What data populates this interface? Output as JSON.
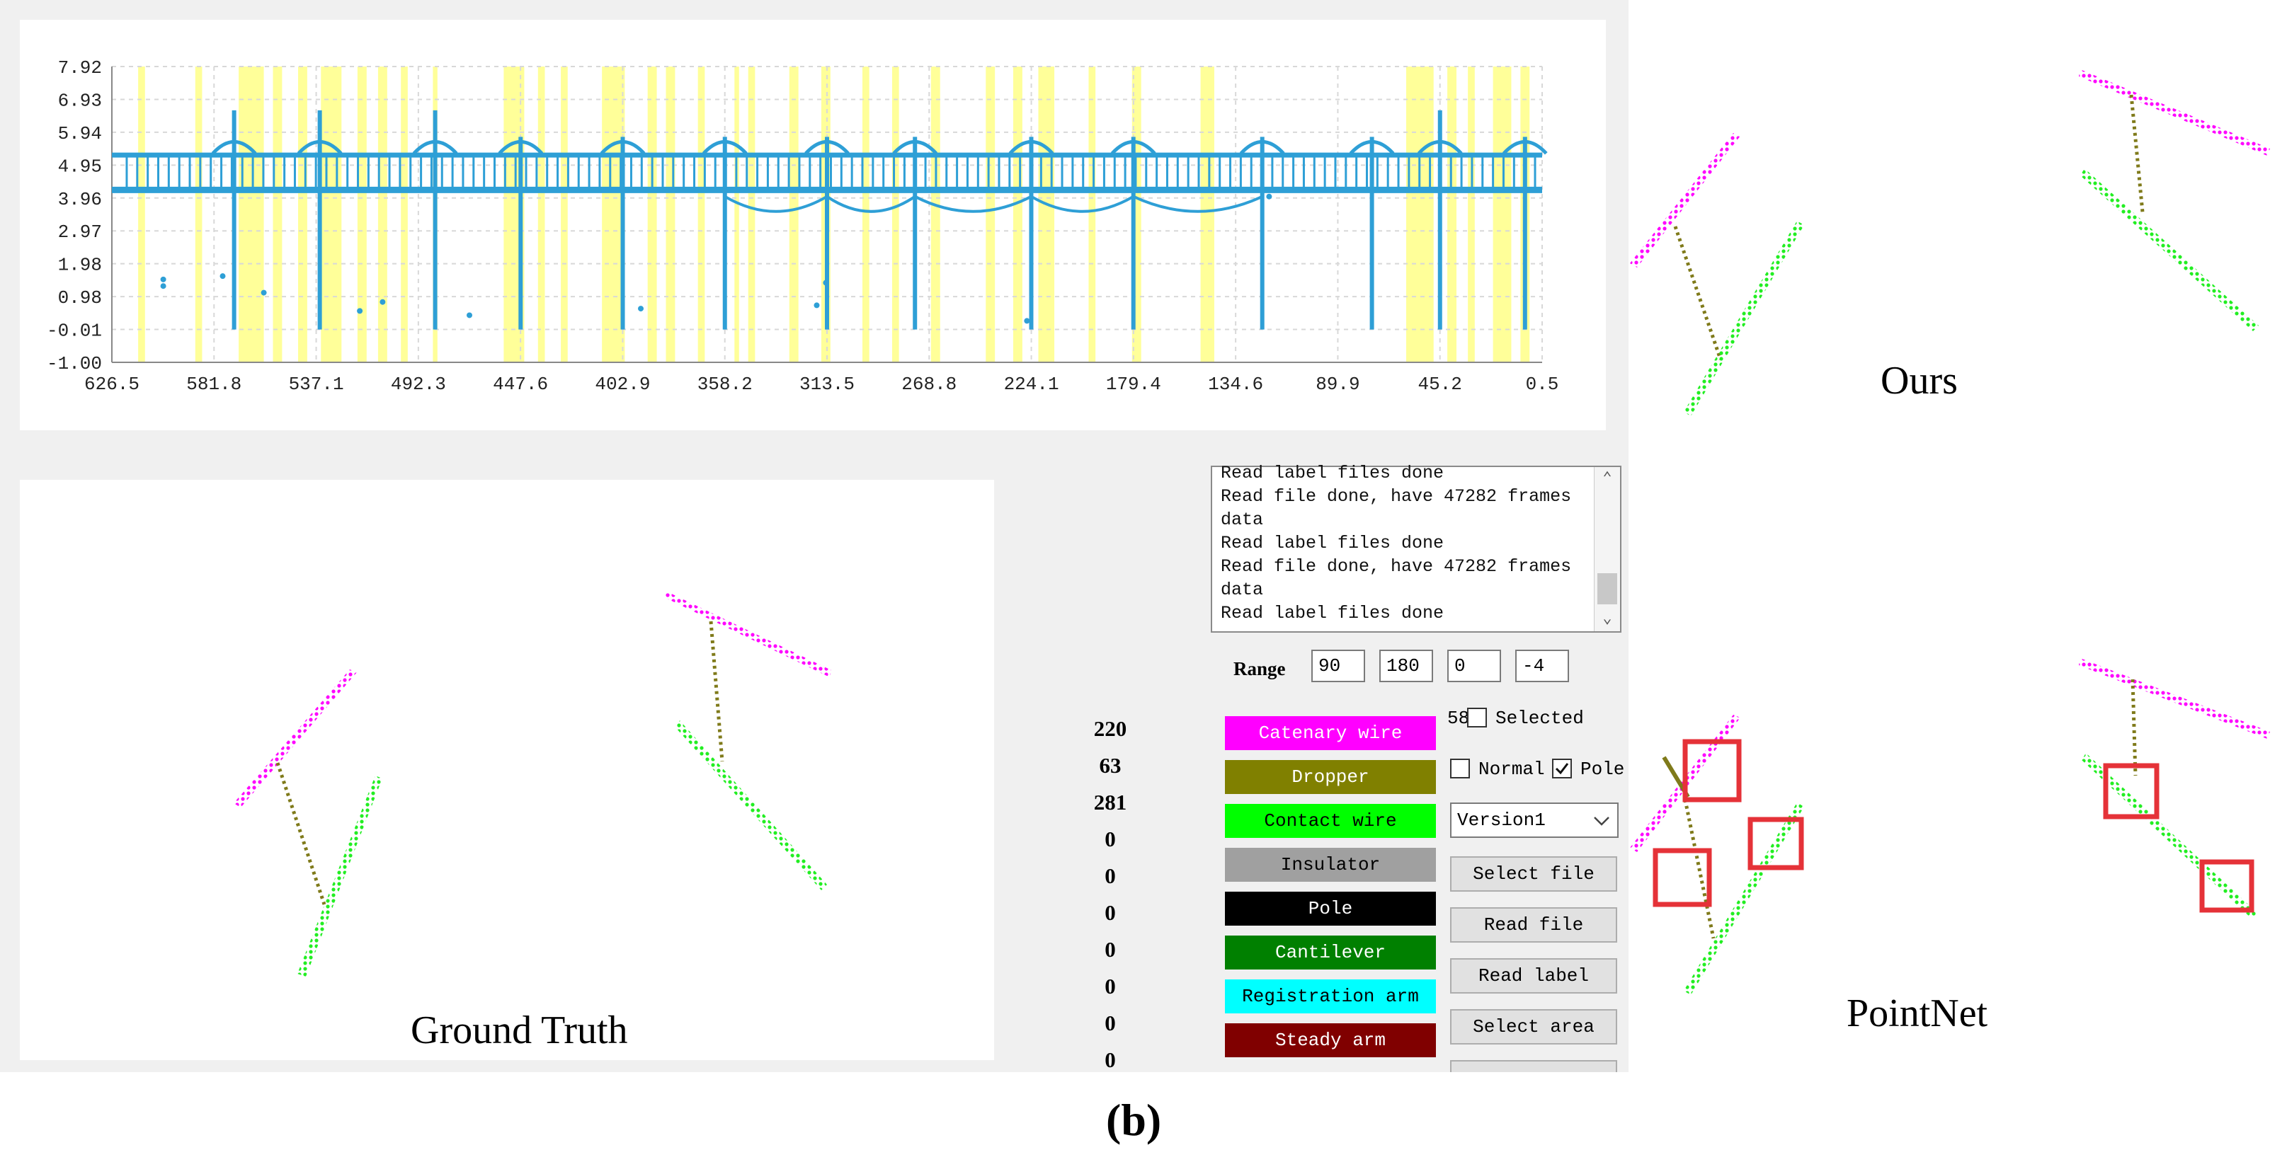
{
  "chart": {
    "y_ticks": [
      "7.92",
      "6.93",
      "5.94",
      "4.95",
      "3.96",
      "2.97",
      "1.98",
      "0.98",
      "-0.01",
      "-1.00"
    ],
    "x_ticks": [
      "626.5",
      "581.8",
      "537.1",
      "492.3",
      "447.6",
      "402.9",
      "358.2",
      "313.5",
      "268.8",
      "224.1",
      "179.4",
      "134.6",
      "89.9",
      "45.2",
      "0.5"
    ]
  },
  "chart_data": {
    "type": "scatter",
    "title": "",
    "xlabel": "",
    "ylabel": "",
    "xlim": [
      626.5,
      0.5
    ],
    "ylim": [
      -1.0,
      7.92
    ],
    "x_reversed": true,
    "grid": true,
    "series": [
      {
        "color": "#2e9fd6",
        "description_points": [
          [
            626.5,
            4.2
          ],
          [
            0.5,
            4.2
          ],
          [
            626.5,
            5.25
          ],
          [
            0.5,
            5.25
          ]
        ]
      }
    ],
    "poles_x": [
      573.0,
      535.5,
      485.0,
      447.6,
      402.9,
      358.2,
      313.5,
      275.0,
      224.1,
      179.4,
      123.0,
      75.0,
      45.2,
      8.0
    ],
    "highlight_color": "#ffff99"
  },
  "log": {
    "lines": [
      "Read label files done",
      "Read file done, have 47282 frames",
      "data",
      "Read label files done",
      "Read file done, have 47282 frames",
      "data",
      "Read label files done"
    ]
  },
  "range": {
    "label": "Range",
    "values": [
      "90",
      "180",
      "0",
      "-4"
    ]
  },
  "counts": [
    "220",
    "63",
    "281",
    "0",
    "0",
    "0",
    "0",
    "0",
    "0",
    "0"
  ],
  "classes": [
    {
      "label": "Catenary wire",
      "bg": "#ff00ff",
      "fg": "#ffffff"
    },
    {
      "label": "Dropper",
      "bg": "#808000",
      "fg": "#ffffff"
    },
    {
      "label": "Contact wire",
      "bg": "#00ff00",
      "fg": "#000000"
    },
    {
      "label": "Insulator",
      "bg": "#a0a0a0",
      "fg": "#000000"
    },
    {
      "label": "Pole",
      "bg": "#000000",
      "fg": "#ffffff"
    },
    {
      "label": "Cantilever",
      "bg": "#008000",
      "fg": "#ffffff"
    },
    {
      "label": "Registration arm",
      "bg": "#00ffff",
      "fg": "#000000"
    },
    {
      "label": "Steady arm",
      "bg": "#800000",
      "fg": "#ffffff"
    }
  ],
  "selected": {
    "prefix": "58",
    "label": "Selected"
  },
  "normal_label": "Normal",
  "pole_label": "Pole",
  "version": "Version1",
  "buttons": {
    "select_file": "Select file",
    "read_file": "Read file",
    "read_label": "Read label",
    "select_area": "Select area"
  },
  "captions": {
    "ground_truth": "Ground Truth",
    "ours": "Ours",
    "pointnet": "PointNet",
    "subfig": "(b)"
  },
  "colors": {
    "catenary": "#ff00ff",
    "dropper": "#7f7a1a",
    "contact": "#22ee22",
    "error_box": "#e53238",
    "chart_points": "#2e9fd6"
  }
}
